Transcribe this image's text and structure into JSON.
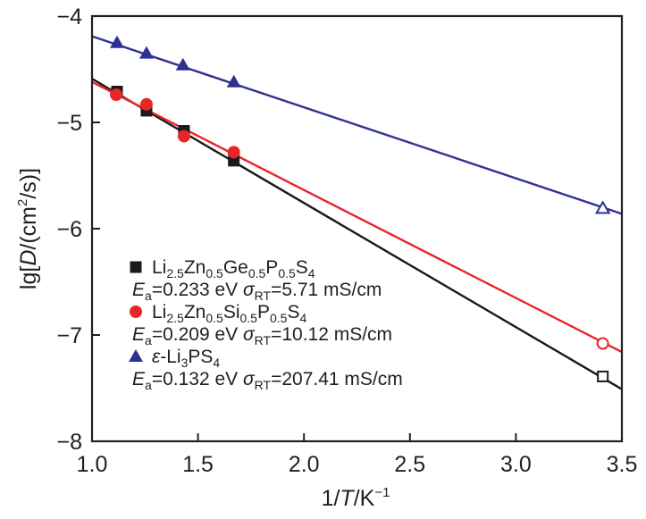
{
  "chart_data": {
    "type": "scatter",
    "title": "",
    "xlabel": {
      "prefix": "1/",
      "italic": "T",
      "suffix": "/K",
      "sup": "−1"
    },
    "ylabel": {
      "prefix": "lg[",
      "italic": "D",
      "mid": "/(cm",
      "sup": "2",
      "suffix": "/s)]"
    },
    "xlim": [
      1.0,
      3.5
    ],
    "ylim": [
      -8,
      -4
    ],
    "xticks": [
      1.0,
      1.5,
      2.0,
      2.5,
      3.0,
      3.5
    ],
    "xtick_labels": [
      "1.0",
      "1.5",
      "2.0",
      "2.5",
      "3.0",
      "3.5"
    ],
    "yticks": [
      -4,
      -5,
      -6,
      -7,
      -8
    ],
    "ytick_labels": [
      "−4",
      "−5",
      "−6",
      "−7",
      "−8"
    ],
    "grid": false,
    "legend_position": "bottom-left",
    "series": [
      {
        "name": "Li2.5Zn0.5Ge0.5P0.5S4",
        "marker": "square",
        "color": "#1a1a1a",
        "points": [
          [
            1.118,
            -4.71
          ],
          [
            1.257,
            -4.89
          ],
          [
            1.434,
            -5.08
          ],
          [
            1.669,
            -5.36
          ]
        ],
        "extrapolated_point": [
          3.41,
          -7.39
        ],
        "fit_line": [
          [
            1.0,
            -4.59
          ],
          [
            3.5,
            -7.51
          ]
        ],
        "legend": {
          "formula": [
            [
              "Li",
              ""
            ],
            [
              "2.5",
              "sub"
            ],
            [
              "Zn",
              ""
            ],
            [
              "0.5",
              "sub"
            ],
            [
              "Ge",
              ""
            ],
            [
              "0.5",
              "sub"
            ],
            [
              "P",
              ""
            ],
            [
              "0.5",
              "sub"
            ],
            [
              "S",
              ""
            ],
            [
              "4",
              "sub"
            ]
          ],
          "ea": "=0.233 eV ",
          "sigma": "=5.71 mS/cm"
        }
      },
      {
        "name": "Li2.5Zn0.5Si0.5P0.5S4",
        "marker": "circle",
        "color": "#e8262a",
        "points": [
          [
            1.114,
            -4.74
          ],
          [
            1.257,
            -4.83
          ],
          [
            1.434,
            -5.13
          ],
          [
            1.669,
            -5.28
          ]
        ],
        "extrapolated_point": [
          3.41,
          -7.08
        ],
        "fit_line": [
          [
            1.0,
            -4.62
          ],
          [
            3.5,
            -7.16
          ]
        ],
        "legend": {
          "formula": [
            [
              "Li",
              ""
            ],
            [
              "2.5",
              "sub"
            ],
            [
              "Zn",
              ""
            ],
            [
              "0.5",
              "sub"
            ],
            [
              "Si",
              ""
            ],
            [
              "0.5",
              "sub"
            ],
            [
              "P",
              ""
            ],
            [
              "0.5",
              "sub"
            ],
            [
              "S",
              ""
            ],
            [
              "4",
              "sub"
            ]
          ],
          "ea": "=0.209 eV ",
          "sigma": "=10.12 mS/cm"
        }
      },
      {
        "name": "ε-Li3PS4",
        "marker": "triangle",
        "color": "#2e3192",
        "points": [
          [
            1.118,
            -4.25
          ],
          [
            1.257,
            -4.35
          ],
          [
            1.429,
            -4.46
          ],
          [
            1.669,
            -4.62
          ]
        ],
        "extrapolated_point": [
          3.41,
          -5.81
        ],
        "fit_line": [
          [
            1.0,
            -4.19
          ],
          [
            3.5,
            -5.86
          ]
        ],
        "legend": {
          "formula": [
            [
              "ε",
              "italic"
            ],
            [
              "-Li",
              ""
            ],
            [
              "3",
              "sub"
            ],
            [
              "PS",
              ""
            ],
            [
              "4",
              "sub"
            ]
          ],
          "ea": "=0.132 eV ",
          "sigma": "=207.41 mS/cm"
        }
      }
    ],
    "legend_symbols": {
      "E": "E",
      "a": "a",
      "sigma": "σ",
      "RT": "RT"
    }
  }
}
